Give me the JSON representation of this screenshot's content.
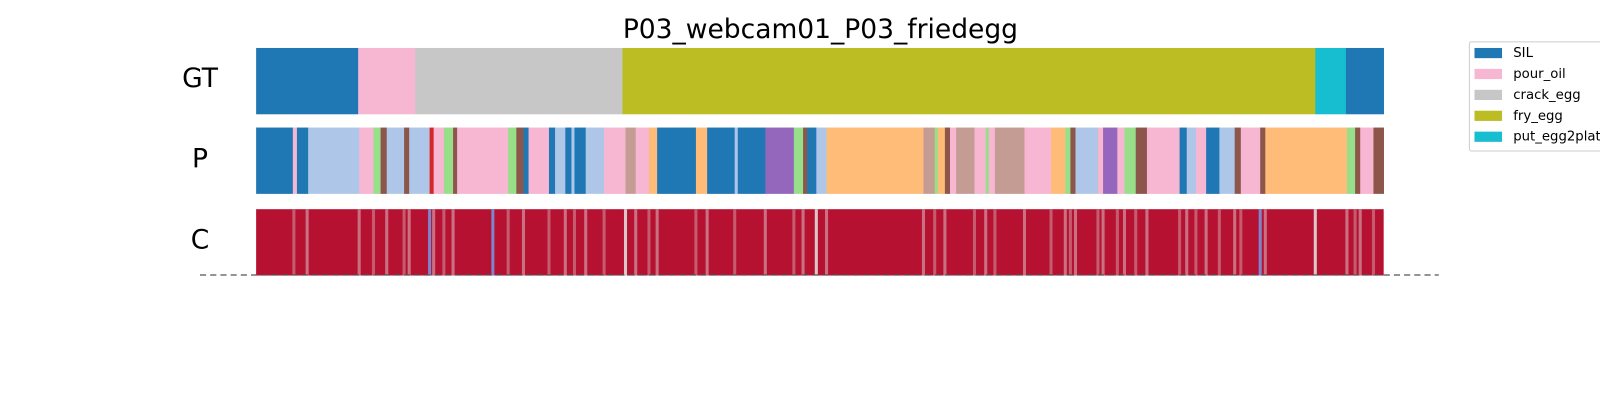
{
  "chart_data": {
    "type": "segmentation",
    "title": "P03_webcam01_P03_friedegg",
    "xlim": [
      0,
      1105
    ],
    "rows": [
      "GT",
      "P",
      "C"
    ],
    "legend": [
      {
        "name": "SIL",
        "color": "#1f77b4"
      },
      {
        "name": "pour_oil",
        "color": "#f7b6d2"
      },
      {
        "name": "crack_egg",
        "color": "#c7c7c7"
      },
      {
        "name": "fry_egg",
        "color": "#bcbd22"
      },
      {
        "name": "put_egg2plate",
        "color": "#17becf"
      }
    ],
    "gt": {
      "starts": [
        0,
        100,
        156,
        359,
        1038,
        1068
      ],
      "colors": [
        "#1f77b4",
        "#f7b6d2",
        "#c7c7c7",
        "#bcbd22",
        "#17becf",
        "#1f77b4"
      ]
    },
    "p": {
      "starts": [
        0,
        36,
        40,
        51,
        101,
        115,
        122,
        128,
        145,
        150,
        170,
        174,
        184,
        193,
        197,
        232,
        247,
        255,
        262,
        267,
        287,
        293,
        303,
        309,
        312,
        323,
        341,
        362,
        372,
        385,
        393,
        431,
        442,
        469,
        472,
        499,
        527,
        536,
        540,
        549,
        559,
        654,
        665,
        668,
        675,
        680,
        686,
        704,
        715,
        718,
        724,
        753,
        779,
        793,
        798,
        803,
        825,
        830,
        844,
        851,
        862,
        873,
        905,
        912,
        921,
        931,
        944,
        959,
        965,
        984,
        989,
        1069,
        1077,
        1082,
        1095
      ],
      "colors": [
        "#1f77b4",
        "#f7b6d2",
        "#1f77b4",
        "#aec7e8",
        "#f7b6d2",
        "#98df8a",
        "#8c564b",
        "#aec7e8",
        "#8c564b",
        "#aec7e8",
        "#d62728",
        "#f7b6d2",
        "#98df8a",
        "#8c564b",
        "#f7b6d2",
        "#f7b6d2",
        "#98df8a",
        "#8c564b",
        "#1f77b4",
        "#f7b6d2",
        "#1f77b4",
        "#aec7e8",
        "#1f77b4",
        "#aec7e8",
        "#1f77b4",
        "#aec7e8",
        "#f7b6d2",
        "#c49c94",
        "#f7b6d2",
        "#ffbb78",
        "#1f77b4",
        "#ffbb78",
        "#1f77b4",
        "#aec7e8",
        "#1f77b4",
        "#9467bd",
        "#98df8a",
        "#8c564b",
        "#1f77b4",
        "#aec7e8",
        "#ffbb78",
        "#c49c94",
        "#98df8a",
        "#ffbb78",
        "#8c564b",
        "#f7b6d2",
        "#c49c94",
        "#f7b6d2",
        "#98df8a",
        "#f7b6d2",
        "#c49c94",
        "#f7b6d2",
        "#ffbb78",
        "#98df8a",
        "#8c564b",
        "#aec7e8",
        "#f7b6d2",
        "#9467bd",
        "#f7b6d2",
        "#98df8a",
        "#8c564b",
        "#f7b6d2",
        "#1f77b4",
        "#aec7e8",
        "#f7b6d2",
        "#1f77b4",
        "#aec7e8",
        "#8c564b",
        "#f7b6d2",
        "#8c564b",
        "#ffbb78",
        "#98df8a",
        "#8c564b",
        "#f7b6d2",
        "#8c564b"
      ]
    },
    "c": {
      "colormap": [
        "#3b4cc0",
        "#dddddd",
        "#b40426"
      ],
      "background": 0.97,
      "dips": [
        [
          37,
          0.8
        ],
        [
          50,
          0.75
        ],
        [
          101,
          0.75
        ],
        [
          115,
          0.8
        ],
        [
          128,
          0.75
        ],
        [
          145,
          0.8
        ],
        [
          150,
          0.75
        ],
        [
          170,
          0.2
        ],
        [
          174,
          0.75
        ],
        [
          184,
          0.8
        ],
        [
          193,
          0.75
        ],
        [
          232,
          0.2
        ],
        [
          247,
          0.8
        ],
        [
          262,
          0.75
        ],
        [
          287,
          0.8
        ],
        [
          303,
          0.75
        ],
        [
          312,
          0.8
        ],
        [
          323,
          0.75
        ],
        [
          341,
          0.8
        ],
        [
          362,
          0.55
        ],
        [
          372,
          0.75
        ],
        [
          385,
          0.8
        ],
        [
          393,
          0.75
        ],
        [
          431,
          0.8
        ],
        [
          442,
          0.75
        ],
        [
          469,
          0.8
        ],
        [
          499,
          0.75
        ],
        [
          527,
          0.8
        ],
        [
          536,
          0.75
        ],
        [
          549,
          0.55
        ],
        [
          559,
          0.75
        ],
        [
          654,
          0.75
        ],
        [
          665,
          0.8
        ],
        [
          675,
          0.75
        ],
        [
          704,
          0.8
        ],
        [
          715,
          0.75
        ],
        [
          724,
          0.8
        ],
        [
          753,
          0.75
        ],
        [
          779,
          0.8
        ],
        [
          793,
          0.75
        ],
        [
          798,
          0.8
        ],
        [
          803,
          0.75
        ],
        [
          825,
          0.8
        ],
        [
          830,
          0.75
        ],
        [
          844,
          0.8
        ],
        [
          851,
          0.75
        ],
        [
          862,
          0.8
        ],
        [
          873,
          0.75
        ],
        [
          905,
          0.8
        ],
        [
          912,
          0.75
        ],
        [
          921,
          0.8
        ],
        [
          931,
          0.75
        ],
        [
          944,
          0.8
        ],
        [
          959,
          0.75
        ],
        [
          965,
          0.8
        ],
        [
          984,
          0.2
        ],
        [
          989,
          0.75
        ],
        [
          1038,
          0.55
        ],
        [
          1069,
          0.75
        ],
        [
          1077,
          0.8
        ],
        [
          1082,
          0.75
        ],
        [
          1095,
          0.8
        ]
      ]
    }
  }
}
